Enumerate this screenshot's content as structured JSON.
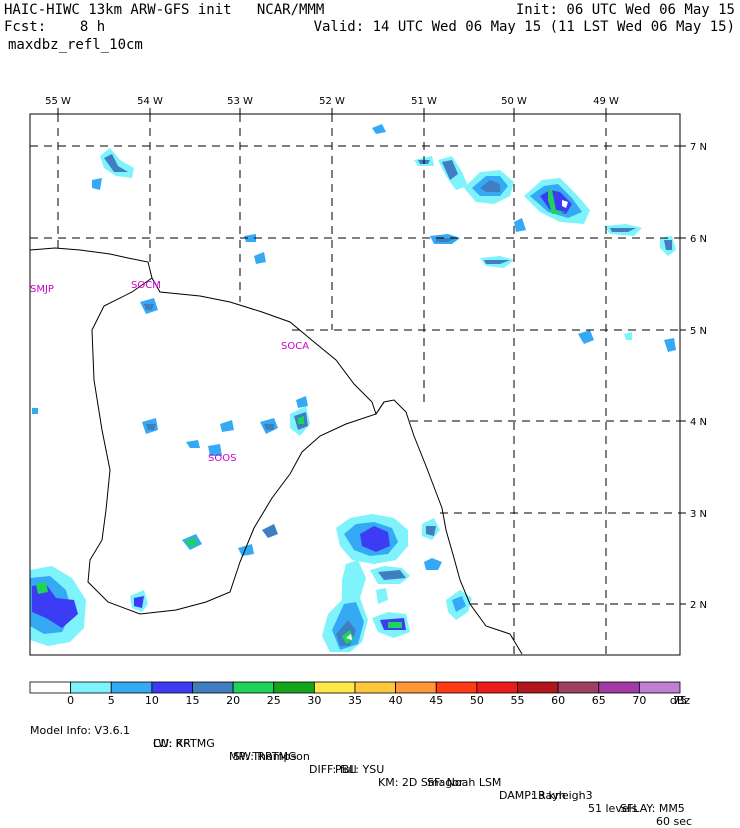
{
  "header": {
    "model_line": "HAIC-HIWC 13km ARW-GFS init   NCAR/MMM",
    "init_line": "Init: 06 UTC Wed 06 May 15",
    "fcst_line": "Fcst:    8 h",
    "valid_line": "Valid: 14 UTC Wed 06 May 15 (11 LST Wed 06 May 15)",
    "field_line": "maxdbz_refl_10cm"
  },
  "map": {
    "lon_labels": [
      "55 W",
      "54 W",
      "53 W",
      "52 W",
      "51 W",
      "50 W",
      "49 W"
    ],
    "lat_labels": [
      "7 N",
      "6 N",
      "5 N",
      "4 N",
      "3 N",
      "2 N"
    ],
    "stations": [
      {
        "id": "SMJP",
        "name": "SMJP"
      },
      {
        "id": "SOCM",
        "name": "SOCM"
      },
      {
        "id": "SOCA",
        "name": "SOCA"
      },
      {
        "id": "SOOS",
        "name": "SOOS"
      }
    ]
  },
  "colorbar": {
    "labels": [
      "0",
      "5",
      "10",
      "15",
      "20",
      "25",
      "30",
      "35",
      "40",
      "45",
      "50",
      "55",
      "60",
      "65",
      "70",
      "75"
    ],
    "unit": "dBz",
    "colors": [
      "#ffffff",
      "#7ef3fb",
      "#36a9f5",
      "#3c3cf5",
      "#3f7fc1",
      "#1fd35a",
      "#14a51d",
      "#ffe84a",
      "#ffc83c",
      "#ff9638",
      "#ff3a14",
      "#ec1c1c",
      "#b0161c",
      "#9e3f64",
      "#a33aa6",
      "#c07fd4"
    ]
  },
  "footer": {
    "line1": [
      "Model Info: V3.6.1",
      "CU: KF",
      "MP: Thompson",
      "PBL: YSU",
      "SF: Noah LSM",
      "13 km",
      "51 levels",
      "60 sec"
    ],
    "line2": [
      "LW: RRTMG",
      "SW: RRTMG",
      "DIFF: full",
      "KM: 2D Smagor",
      "DAMP: Rayleigh3",
      "SFLAY: MM5"
    ]
  }
}
